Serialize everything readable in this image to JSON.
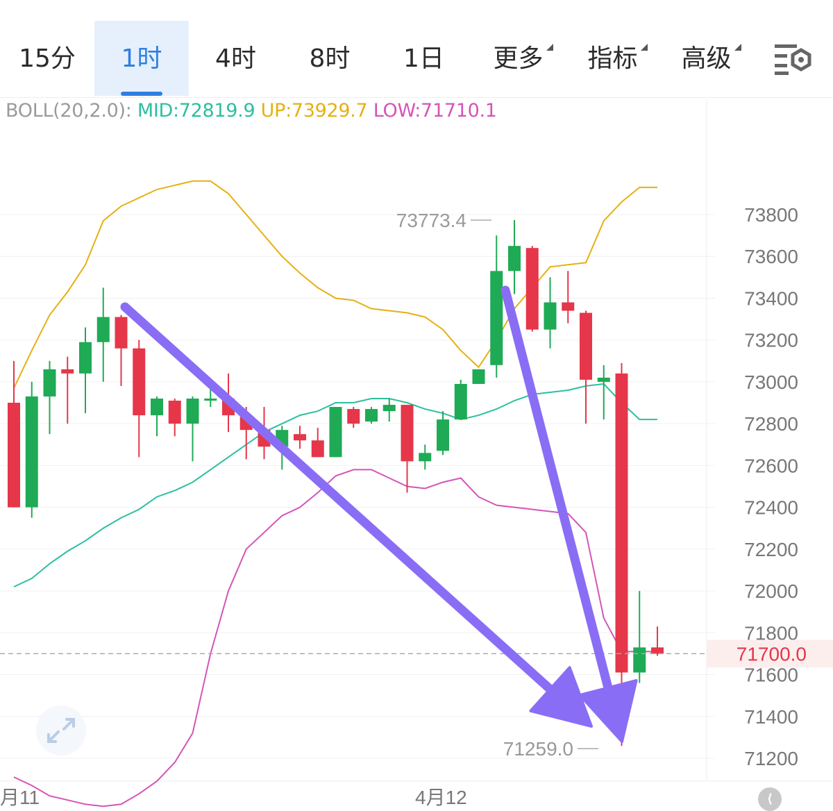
{
  "tabs": [
    {
      "label": "15分",
      "active": false,
      "dropdown": false
    },
    {
      "label": "1时",
      "active": true,
      "dropdown": false
    },
    {
      "label": "4时",
      "active": false,
      "dropdown": false
    },
    {
      "label": "8时",
      "active": false,
      "dropdown": false
    },
    {
      "label": "1日",
      "active": false,
      "dropdown": false
    },
    {
      "label": "更多",
      "active": false,
      "dropdown": true
    },
    {
      "label": "指标",
      "active": false,
      "dropdown": true
    },
    {
      "label": "高级",
      "active": false,
      "dropdown": true
    }
  ],
  "boll": {
    "label": "BOLL(20,2.0):",
    "mid": "MID:72819.9",
    "up": "UP:73929.7",
    "low": "LOW:71710.1"
  },
  "colors": {
    "up_candle": "#1faa55",
    "down_candle": "#e5364a",
    "mid_line": "#2bbf9f",
    "up_line": "#e6b012",
    "low_line": "#d454b8",
    "arrow": "#8a6df5",
    "last_price": "#e5364a"
  },
  "chart_data": {
    "type": "candlestick",
    "y_ticks": [
      73800,
      73600,
      73400,
      73200,
      73000,
      72800,
      72600,
      72400,
      72200,
      72000,
      71800,
      71600,
      71400,
      71200
    ],
    "x_labels": [
      "月11",
      "4月12"
    ],
    "ylim": [
      71100,
      74200
    ],
    "last_price": 71700.0,
    "last_price_label": "71700.0",
    "high_annotation": {
      "label": "73773.4",
      "value": 73773.4
    },
    "low_annotation": {
      "label": "71259.0",
      "value": 71259.0
    },
    "candles": [
      {
        "o": 72900,
        "h": 73100,
        "l": 72400,
        "c": 72400
      },
      {
        "o": 72400,
        "h": 73000,
        "l": 72350,
        "c": 72930
      },
      {
        "o": 72930,
        "h": 73100,
        "l": 72750,
        "c": 73060
      },
      {
        "o": 73060,
        "h": 73120,
        "l": 72800,
        "c": 73040
      },
      {
        "o": 73040,
        "h": 73260,
        "l": 72850,
        "c": 73190
      },
      {
        "o": 73190,
        "h": 73450,
        "l": 73000,
        "c": 73310
      },
      {
        "o": 73310,
        "h": 73320,
        "l": 72980,
        "c": 73160
      },
      {
        "o": 73160,
        "h": 73200,
        "l": 72640,
        "c": 72840
      },
      {
        "o": 72840,
        "h": 72930,
        "l": 72740,
        "c": 72920
      },
      {
        "o": 72910,
        "h": 72920,
        "l": 72740,
        "c": 72800
      },
      {
        "o": 72800,
        "h": 72930,
        "l": 72620,
        "c": 72920
      },
      {
        "o": 72920,
        "h": 73000,
        "l": 72880,
        "c": 72920
      },
      {
        "o": 72920,
        "h": 73040,
        "l": 72760,
        "c": 72840
      },
      {
        "o": 72840,
        "h": 72880,
        "l": 72630,
        "c": 72770
      },
      {
        "o": 72770,
        "h": 72880,
        "l": 72630,
        "c": 72690
      },
      {
        "o": 72690,
        "h": 72790,
        "l": 72580,
        "c": 72770
      },
      {
        "o": 72750,
        "h": 72790,
        "l": 72680,
        "c": 72720
      },
      {
        "o": 72720,
        "h": 72780,
        "l": 72640,
        "c": 72640
      },
      {
        "o": 72640,
        "h": 72880,
        "l": 72640,
        "c": 72880
      },
      {
        "o": 72870,
        "h": 72880,
        "l": 72780,
        "c": 72800
      },
      {
        "o": 72810,
        "h": 72880,
        "l": 72800,
        "c": 72870
      },
      {
        "o": 72860,
        "h": 72920,
        "l": 72810,
        "c": 72890
      },
      {
        "o": 72890,
        "h": 72890,
        "l": 72470,
        "c": 72620
      },
      {
        "o": 72620,
        "h": 72700,
        "l": 72580,
        "c": 72660
      },
      {
        "o": 72670,
        "h": 72860,
        "l": 72650,
        "c": 72820
      },
      {
        "o": 72820,
        "h": 73010,
        "l": 72820,
        "c": 72990
      },
      {
        "o": 72990,
        "h": 73060,
        "l": 72990,
        "c": 73060
      },
      {
        "o": 73080,
        "h": 73700,
        "l": 73020,
        "c": 73530
      },
      {
        "o": 73530,
        "h": 73773.4,
        "l": 73420,
        "c": 73650
      },
      {
        "o": 73640,
        "h": 73650,
        "l": 73240,
        "c": 73250
      },
      {
        "o": 73250,
        "h": 73500,
        "l": 73160,
        "c": 73380
      },
      {
        "o": 73380,
        "h": 73530,
        "l": 73280,
        "c": 73340
      },
      {
        "o": 73330,
        "h": 73340,
        "l": 72800,
        "c": 73010
      },
      {
        "o": 73000,
        "h": 73080,
        "l": 72820,
        "c": 73020
      },
      {
        "o": 73040,
        "h": 73090,
        "l": 71259.0,
        "c": 71610
      },
      {
        "o": 71610,
        "h": 72000,
        "l": 71560,
        "c": 71730
      },
      {
        "o": 71730,
        "h": 71830,
        "l": 71690,
        "c": 71700
      }
    ],
    "boll_mid": [
      72020,
      72060,
      72130,
      72190,
      72240,
      72300,
      72350,
      72390,
      72450,
      72480,
      72520,
      72580,
      72640,
      72700,
      72760,
      72800,
      72840,
      72860,
      72900,
      72900,
      72920,
      72920,
      72900,
      72870,
      72850,
      72820,
      72840,
      72870,
      72910,
      72940,
      72950,
      72960,
      72980,
      72990,
      72900,
      72820,
      72820
    ],
    "boll_up": [
      72970,
      73150,
      73320,
      73430,
      73560,
      73770,
      73840,
      73880,
      73920,
      73940,
      73960,
      73960,
      73900,
      73800,
      73700,
      73600,
      73520,
      73450,
      73400,
      73390,
      73350,
      73340,
      73330,
      73310,
      73250,
      73150,
      73070,
      73200,
      73350,
      73450,
      73550,
      73560,
      73570,
      73770,
      73860,
      73930,
      73930
    ],
    "boll_low": [
      71110,
      71070,
      71020,
      71000,
      70980,
      70970,
      70980,
      71030,
      71090,
      71180,
      71320,
      71700,
      72000,
      72200,
      72280,
      72360,
      72400,
      72470,
      72550,
      72580,
      72580,
      72540,
      72500,
      72490,
      72520,
      72540,
      72450,
      72410,
      72400,
      72390,
      72380,
      72370,
      72280,
      71870,
      71710,
      71710,
      71710
    ]
  }
}
